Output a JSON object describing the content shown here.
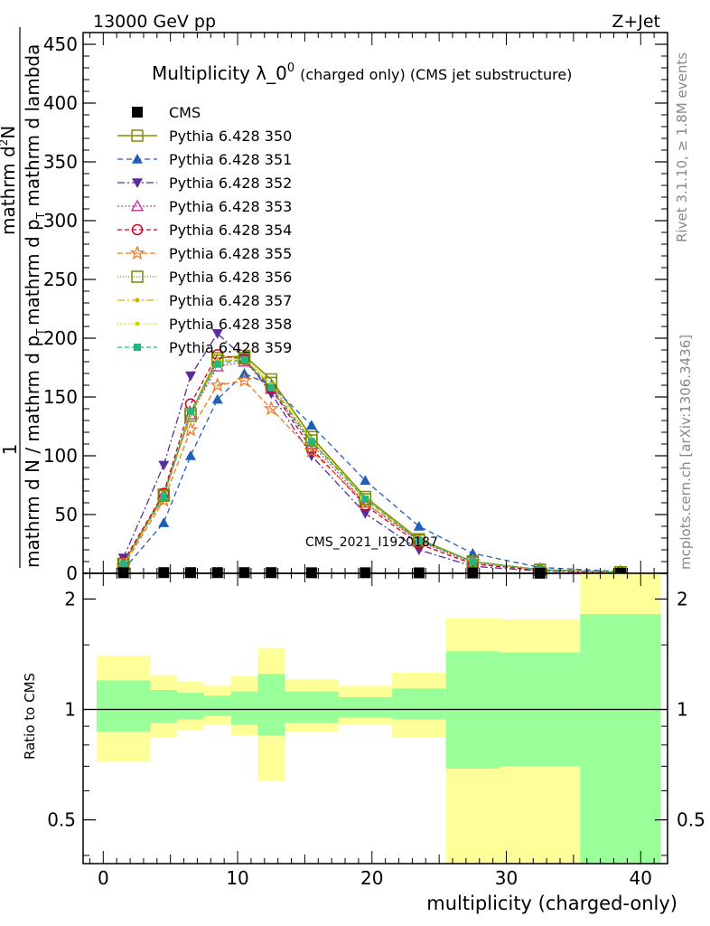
{
  "header": {
    "left": "13000 GeV pp",
    "right": "Z+Jet"
  },
  "plot_title": {
    "main": "Multiplicity λ_0",
    "sup": "0",
    "detail": "(charged only) (CMS jet substructure)"
  },
  "side_labels": {
    "rivet": "Rivet 3.1.10, ≥ 1.8M events",
    "mcplots": "mcplots.cern.ch [arXiv:1306.3436]"
  },
  "watermark": "CMS_2021_I1920187",
  "ylabel_top": {
    "numerator_one": "1",
    "denominator_outer": "mathrm d N / mathrm d p",
    "denominator_outer_sub": "T",
    "numerator_inner": "mathrm d",
    "numerator_inner_sup": "2",
    "numerator_inner_tail": "N",
    "denominator_inner": "mathrm d p",
    "denominator_inner_sub": "T",
    "denominator_inner_tail": " mathrm d lambda"
  },
  "chart_data": [
    {
      "type": "line",
      "panel": "main",
      "xlim": [
        -1.5,
        42
      ],
      "ylim": [
        0,
        460
      ],
      "yticks": [
        0,
        50,
        100,
        150,
        200,
        250,
        300,
        350,
        400,
        450
      ],
      "xticks": [
        0,
        10,
        20,
        30,
        40
      ],
      "xlabel": "multiplicity (charged-only)",
      "x": [
        1.5,
        4.5,
        6.5,
        8.5,
        10.5,
        12.5,
        15.5,
        19.5,
        23.5,
        27.5,
        32.5,
        38.5
      ],
      "series": [
        {
          "name": "CMS",
          "color": "#000000",
          "marker": "filled-square",
          "dash": "none",
          "values": [
            0.5,
            0.6,
            0.6,
            0.6,
            0.6,
            0.6,
            0.5,
            0.5,
            0.4,
            0.3,
            0.1,
            0.05
          ]
        },
        {
          "name": "Pythia 6.428 350",
          "color": "#8b8b00",
          "marker": "open-square",
          "dash": "solid",
          "values": [
            8,
            67,
            136,
            183,
            185,
            165,
            116,
            65,
            29,
            10,
            3,
            1
          ]
        },
        {
          "name": "Pythia 6.428 351",
          "color": "#1f5fbf",
          "marker": "filled-triangle-up",
          "dash": "6,4",
          "values": [
            3,
            43,
            100,
            148,
            170,
            160,
            126,
            79,
            40,
            17,
            5,
            1.5
          ]
        },
        {
          "name": "Pythia 6.428 352",
          "color": "#5b2ca0",
          "marker": "filled-triangle-down",
          "dash": "8,3,2,3",
          "values": [
            13,
            92,
            168,
            204,
            183,
            153,
            100,
            51,
            20,
            6,
            2,
            0.5
          ]
        },
        {
          "name": "Pythia 6.428 353",
          "color": "#c0409a",
          "marker": "open-triangle-up",
          "dash": "2,2",
          "values": [
            9,
            67,
            135,
            176,
            180,
            157,
            110,
            60,
            27,
            9,
            3,
            1
          ]
        },
        {
          "name": "Pythia 6.428 354",
          "color": "#d6001c",
          "marker": "open-circle",
          "dash": "5,3",
          "values": [
            10,
            68,
            144,
            186,
            182,
            157,
            106,
            58,
            25,
            8,
            2.5,
            0.8
          ]
        },
        {
          "name": "Pythia 6.428 355",
          "color": "#f07820",
          "marker": "open-star",
          "dash": "6,3",
          "values": [
            6,
            62,
            122,
            160,
            164,
            140,
            104,
            60,
            28,
            10,
            3,
            1
          ]
        },
        {
          "name": "Pythia 6.428 356",
          "color": "#6f8f00",
          "marker": "open-square",
          "dash": "1,2",
          "values": [
            8,
            66,
            134,
            181,
            183,
            162,
            113,
            63,
            28,
            10,
            3,
            1
          ]
        },
        {
          "name": "Pythia 6.428 357",
          "color": "#d4b000",
          "marker": "small-dot",
          "dash": "8,3,2,3",
          "values": [
            8,
            65,
            135,
            180,
            182,
            160,
            113,
            64,
            28,
            10,
            3,
            1
          ]
        },
        {
          "name": "Pythia 6.428 358",
          "color": "#c8d600",
          "marker": "small-dot",
          "dash": "1,2",
          "values": [
            8,
            66,
            136,
            181,
            183,
            161,
            114,
            64,
            28,
            10,
            3,
            1
          ]
        },
        {
          "name": "Pythia 6.428 359",
          "color": "#20b880",
          "marker": "filled-square-small",
          "dash": "5,3",
          "values": [
            8,
            65,
            138,
            178,
            182,
            158,
            112,
            63,
            28,
            10,
            3,
            1
          ]
        }
      ]
    },
    {
      "type": "area",
      "panel": "ratio",
      "ylabel": "Ratio to CMS",
      "scale": "log",
      "ylim": [
        0.38,
        2.35
      ],
      "yticks": [
        0.5,
        1,
        2
      ],
      "ytick_labels": [
        "0.5",
        "1",
        "2"
      ],
      "bin_edges": [
        -0.5,
        3.5,
        5.5,
        7.5,
        9.5,
        11.5,
        13.5,
        17.5,
        21.5,
        25.5,
        29.5,
        35.5,
        41.5
      ],
      "band_inner": {
        "color": "#99ff99",
        "low": [
          0.87,
          0.92,
          0.94,
          0.96,
          0.91,
          0.85,
          0.92,
          0.95,
          0.94,
          0.69,
          0.7,
          0.35
        ],
        "high": [
          1.2,
          1.13,
          1.11,
          1.09,
          1.12,
          1.25,
          1.12,
          1.08,
          1.14,
          1.44,
          1.43,
          1.82
        ]
      },
      "band_outer": {
        "color": "#ffff99",
        "low": [
          0.72,
          0.84,
          0.88,
          0.91,
          0.85,
          0.64,
          0.87,
          0.91,
          0.84,
          0.35,
          0.35,
          0.35
        ],
        "high": [
          1.4,
          1.24,
          1.19,
          1.16,
          1.23,
          1.47,
          1.21,
          1.16,
          1.26,
          1.77,
          1.76,
          2.35
        ]
      },
      "reference_line": 1
    }
  ]
}
